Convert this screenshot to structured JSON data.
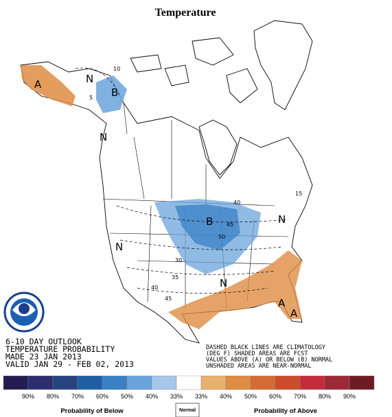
{
  "header": {
    "title": "Temperature"
  },
  "map": {
    "labels": [
      "A",
      "N",
      "B",
      "N",
      "B",
      "N",
      "N",
      "A",
      "N",
      "A"
    ],
    "contours": [
      "10",
      "5",
      "40",
      "45",
      "50",
      "30",
      "35",
      "40",
      "45",
      "15"
    ]
  },
  "outlook": {
    "lines": [
      "6-10 DAY OUTLOOK",
      "TEMPERATURE PROBABILITY",
      "MADE  23 JAN 2013",
      "VALID  JAN 29 - FEB 02, 2013"
    ]
  },
  "notes": {
    "lines": [
      "DASHED BLACK LINES ARE CLIMATOLOGY",
      "(DEG F) SHADED AREAS ARE FCST",
      "VALUES ABOVE (A) OR BELOW (B) NORMAL",
      "UNSHADED AREAS ARE NEAR-NORMAL"
    ]
  },
  "legend": {
    "colors": [
      "#221c50",
      "#2b2d6e",
      "#27447f",
      "#1f5ea4",
      "#3a80c4",
      "#6aa4dc",
      "#a7c7ea",
      "#ffffff",
      "#e8b06c",
      "#e08c42",
      "#d46c33",
      "#cd4c2b",
      "#c42c3c",
      "#9c2a36",
      "#6e1b24"
    ],
    "labels": [
      "90%",
      "80%",
      "70%",
      "60%",
      "50%",
      "40%",
      "33%",
      "33%",
      "40%",
      "50%",
      "60%",
      "70%",
      "80%",
      "90%"
    ],
    "below": "Probability of Below",
    "normal": "Normal",
    "above": "Probability of Above"
  }
}
